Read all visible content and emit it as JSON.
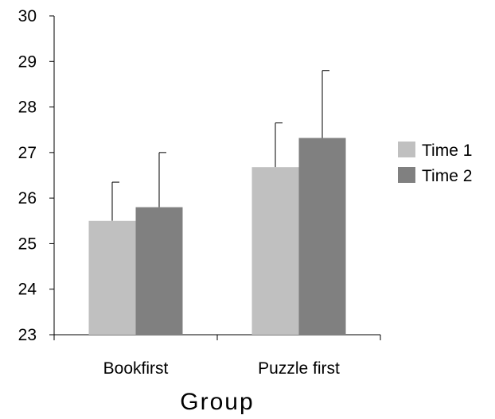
{
  "chart_data": {
    "type": "bar",
    "categories": [
      "Bookfirst",
      "Puzzle first"
    ],
    "series": [
      {
        "name": "Time 1",
        "color": "#c0c0c0",
        "values": [
          25.5,
          26.68
        ],
        "error": [
          0.85,
          0.97
        ]
      },
      {
        "name": "Time 2",
        "color": "#808080",
        "values": [
          25.8,
          27.32
        ],
        "error": [
          1.2,
          1.48
        ]
      }
    ],
    "xlabel": "Group",
    "ylabel": "",
    "ylim": [
      23,
      30
    ],
    "yticks": [
      23,
      24,
      25,
      26,
      27,
      28,
      29,
      30
    ],
    "grid": false,
    "legend_position": "right"
  }
}
